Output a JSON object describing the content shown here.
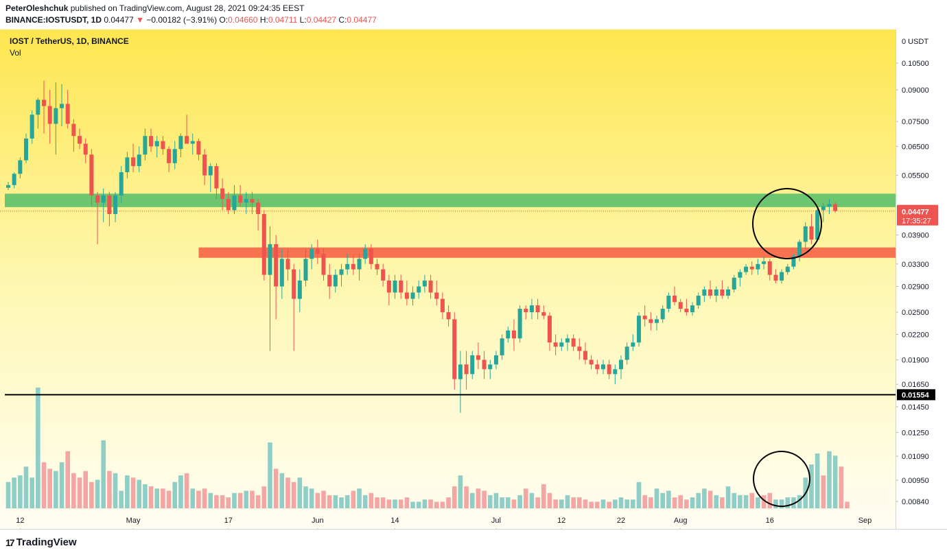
{
  "header": {
    "author": "PeterOleshchuk",
    "published_text": "published on TradingView.com, August 28, 2021 09:24:35 EEST",
    "symbol": "BINANCE:IOSTUSDT, 1D",
    "last": "0.04477",
    "change_arrow": "▼",
    "change": "−0.00182 (−3.91%)",
    "o_label": "O:",
    "o": "0.04660",
    "h_label": "H:",
    "h": "0.04711",
    "l_label": "L:",
    "l": "0.04427",
    "c_label": "C:",
    "c": "0.04477"
  },
  "pane": {
    "title": "IOST / TetherUS, 1D, BINANCE",
    "vol_label": "Vol"
  },
  "logo": {
    "text": "TradingView",
    "mark": "17"
  },
  "colors": {
    "up": "#26a69a",
    "down": "#ef5350",
    "vol_up": "#8fcdc7",
    "vol_down": "#f4a6a4",
    "green_zone": "#6cc56f",
    "red_zone": "#f7734f",
    "bg_top": "#fde64f",
    "bg_bottom": "#fffdf1"
  },
  "chart_data": {
    "type": "candlestick",
    "scale": "log",
    "price_axis_currency": "0 USDT",
    "y_ticks": [
      0.105,
      0.09,
      0.075,
      0.065,
      0.055,
      0.039,
      0.033,
      0.029,
      0.025,
      0.022,
      0.019,
      0.0165,
      0.0145,
      0.0125,
      0.0109,
      0.0095,
      0.0084
    ],
    "y_tick_labels": [
      "0.10500",
      "0.09000",
      "0.07500",
      "0.06500",
      "0.05500",
      "0.03900",
      "0.03300",
      "0.02900",
      "0.02500",
      "0.02200",
      "0.01900",
      "0.01650",
      "0.01450",
      "0.01250",
      "0.01090",
      "0.00950",
      "0.00840"
    ],
    "x_ticks": [
      {
        "label": "12",
        "date": "2021-04-12"
      },
      {
        "label": "May",
        "date": "2021-05-01"
      },
      {
        "label": "17",
        "date": "2021-05-17"
      },
      {
        "label": "Jun",
        "date": "2021-06-01"
      },
      {
        "label": "14",
        "date": "2021-06-14"
      },
      {
        "label": "Jul",
        "date": "2021-07-01"
      },
      {
        "label": "12",
        "date": "2021-07-12"
      },
      {
        "label": "22",
        "date": "2021-07-22"
      },
      {
        "label": "Aug",
        "date": "2021-08-01"
      },
      {
        "label": "16",
        "date": "2021-08-16"
      },
      {
        "label": "Sep",
        "date": "2021-09-01"
      }
    ],
    "first_date": "2021-04-10",
    "candles": [
      [
        0.0512,
        0.053,
        0.0505,
        0.052
      ],
      [
        0.052,
        0.056,
        0.051,
        0.0555
      ],
      [
        0.0555,
        0.061,
        0.054,
        0.06
      ],
      [
        0.06,
        0.07,
        0.059,
        0.068
      ],
      [
        0.068,
        0.08,
        0.066,
        0.078
      ],
      [
        0.078,
        0.086,
        0.072,
        0.085
      ],
      [
        0.085,
        0.095,
        0.07,
        0.082
      ],
      [
        0.082,
        0.09,
        0.066,
        0.074
      ],
      [
        0.074,
        0.094,
        0.062,
        0.081
      ],
      [
        0.081,
        0.093,
        0.073,
        0.083
      ],
      [
        0.083,
        0.09,
        0.072,
        0.074
      ],
      [
        0.074,
        0.076,
        0.063,
        0.069
      ],
      [
        0.069,
        0.072,
        0.064,
        0.066
      ],
      [
        0.066,
        0.068,
        0.059,
        0.062
      ],
      [
        0.062,
        0.064,
        0.046,
        0.049
      ],
      [
        0.049,
        0.05,
        0.037,
        0.047
      ],
      [
        0.047,
        0.051,
        0.042,
        0.049
      ],
      [
        0.049,
        0.05,
        0.041,
        0.044
      ],
      [
        0.044,
        0.05,
        0.042,
        0.049
      ],
      [
        0.049,
        0.058,
        0.047,
        0.056
      ],
      [
        0.056,
        0.063,
        0.054,
        0.061
      ],
      [
        0.061,
        0.066,
        0.056,
        0.058
      ],
      [
        0.058,
        0.065,
        0.056,
        0.062
      ],
      [
        0.062,
        0.072,
        0.06,
        0.069
      ],
      [
        0.069,
        0.072,
        0.063,
        0.065
      ],
      [
        0.065,
        0.069,
        0.061,
        0.067
      ],
      [
        0.067,
        0.069,
        0.062,
        0.064
      ],
      [
        0.064,
        0.065,
        0.056,
        0.059
      ],
      [
        0.059,
        0.067,
        0.057,
        0.064
      ],
      [
        0.064,
        0.07,
        0.061,
        0.069
      ],
      [
        0.069,
        0.078,
        0.066,
        0.066
      ],
      [
        0.066,
        0.07,
        0.062,
        0.067
      ],
      [
        0.067,
        0.068,
        0.06,
        0.062
      ],
      [
        0.062,
        0.064,
        0.052,
        0.055
      ],
      [
        0.055,
        0.059,
        0.05,
        0.058
      ],
      [
        0.058,
        0.059,
        0.048,
        0.051
      ],
      [
        0.051,
        0.054,
        0.045,
        0.048
      ],
      [
        0.048,
        0.05,
        0.044,
        0.045
      ],
      [
        0.045,
        0.052,
        0.044,
        0.049
      ],
      [
        0.049,
        0.052,
        0.046,
        0.047
      ],
      [
        0.047,
        0.05,
        0.044,
        0.048
      ],
      [
        0.048,
        0.05,
        0.044,
        0.047
      ],
      [
        0.047,
        0.048,
        0.04,
        0.044
      ],
      [
        0.044,
        0.045,
        0.03,
        0.031
      ],
      [
        0.031,
        0.041,
        0.02,
        0.037
      ],
      [
        0.037,
        0.039,
        0.024,
        0.029
      ],
      [
        0.029,
        0.036,
        0.027,
        0.034
      ],
      [
        0.034,
        0.036,
        0.03,
        0.032
      ],
      [
        0.032,
        0.033,
        0.02,
        0.027
      ],
      [
        0.027,
        0.032,
        0.025,
        0.03
      ],
      [
        0.03,
        0.036,
        0.029,
        0.034
      ],
      [
        0.034,
        0.037,
        0.032,
        0.036
      ],
      [
        0.036,
        0.038,
        0.033,
        0.035
      ],
      [
        0.035,
        0.036,
        0.03,
        0.031
      ],
      [
        0.031,
        0.033,
        0.027,
        0.029
      ],
      [
        0.029,
        0.032,
        0.028,
        0.031
      ],
      [
        0.031,
        0.033,
        0.029,
        0.032
      ],
      [
        0.032,
        0.035,
        0.031,
        0.033
      ],
      [
        0.033,
        0.035,
        0.031,
        0.032
      ],
      [
        0.032,
        0.035,
        0.03,
        0.034
      ],
      [
        0.034,
        0.037,
        0.033,
        0.036
      ],
      [
        0.036,
        0.037,
        0.032,
        0.033
      ],
      [
        0.033,
        0.034,
        0.031,
        0.032
      ],
      [
        0.032,
        0.033,
        0.029,
        0.03
      ],
      [
        0.03,
        0.031,
        0.026,
        0.028
      ],
      [
        0.028,
        0.031,
        0.027,
        0.03
      ],
      [
        0.03,
        0.031,
        0.027,
        0.028
      ],
      [
        0.028,
        0.03,
        0.026,
        0.027
      ],
      [
        0.027,
        0.029,
        0.026,
        0.028
      ],
      [
        0.028,
        0.03,
        0.027,
        0.029
      ],
      [
        0.029,
        0.031,
        0.028,
        0.03
      ],
      [
        0.03,
        0.031,
        0.027,
        0.028
      ],
      [
        0.028,
        0.03,
        0.026,
        0.027
      ],
      [
        0.027,
        0.028,
        0.024,
        0.025
      ],
      [
        0.025,
        0.026,
        0.023,
        0.024
      ],
      [
        0.024,
        0.025,
        0.016,
        0.017
      ],
      [
        0.017,
        0.02,
        0.014,
        0.0185
      ],
      [
        0.0185,
        0.02,
        0.016,
        0.0175
      ],
      [
        0.0175,
        0.02,
        0.017,
        0.0195
      ],
      [
        0.0195,
        0.021,
        0.018,
        0.019
      ],
      [
        0.019,
        0.02,
        0.017,
        0.018
      ],
      [
        0.018,
        0.019,
        0.017,
        0.0185
      ],
      [
        0.0185,
        0.02,
        0.018,
        0.0195
      ],
      [
        0.0195,
        0.022,
        0.019,
        0.0215
      ],
      [
        0.0215,
        0.023,
        0.021,
        0.0225
      ],
      [
        0.0225,
        0.024,
        0.02,
        0.0215
      ],
      [
        0.0215,
        0.026,
        0.021,
        0.0255
      ],
      [
        0.0255,
        0.026,
        0.024,
        0.025
      ],
      [
        0.025,
        0.027,
        0.024,
        0.026
      ],
      [
        0.026,
        0.027,
        0.024,
        0.025
      ],
      [
        0.025,
        0.026,
        0.024,
        0.0245
      ],
      [
        0.0245,
        0.025,
        0.02,
        0.021
      ],
      [
        0.021,
        0.022,
        0.0195,
        0.0205
      ],
      [
        0.0205,
        0.0215,
        0.02,
        0.021
      ],
      [
        0.021,
        0.022,
        0.02,
        0.0215
      ],
      [
        0.0215,
        0.022,
        0.02,
        0.0205
      ],
      [
        0.0205,
        0.0215,
        0.019,
        0.02
      ],
      [
        0.02,
        0.021,
        0.0185,
        0.019
      ],
      [
        0.019,
        0.0195,
        0.018,
        0.0185
      ],
      [
        0.0185,
        0.019,
        0.0175,
        0.018
      ],
      [
        0.018,
        0.019,
        0.0175,
        0.0185
      ],
      [
        0.0185,
        0.019,
        0.017,
        0.0175
      ],
      [
        0.0175,
        0.0185,
        0.0165,
        0.018
      ],
      [
        0.018,
        0.0195,
        0.017,
        0.019
      ],
      [
        0.019,
        0.021,
        0.0185,
        0.0205
      ],
      [
        0.0205,
        0.022,
        0.02,
        0.021
      ],
      [
        0.021,
        0.025,
        0.0205,
        0.0245
      ],
      [
        0.0245,
        0.026,
        0.023,
        0.024
      ],
      [
        0.024,
        0.025,
        0.0225,
        0.0235
      ],
      [
        0.0235,
        0.0245,
        0.0225,
        0.024
      ],
      [
        0.024,
        0.026,
        0.0235,
        0.0255
      ],
      [
        0.0255,
        0.028,
        0.025,
        0.0275
      ],
      [
        0.0275,
        0.029,
        0.026,
        0.0265
      ],
      [
        0.0265,
        0.027,
        0.025,
        0.0255
      ],
      [
        0.0255,
        0.027,
        0.0245,
        0.025
      ],
      [
        0.025,
        0.0265,
        0.0245,
        0.026
      ],
      [
        0.026,
        0.028,
        0.0255,
        0.0275
      ],
      [
        0.0275,
        0.029,
        0.0265,
        0.0285
      ],
      [
        0.0285,
        0.03,
        0.027,
        0.0275
      ],
      [
        0.0275,
        0.029,
        0.0265,
        0.0285
      ],
      [
        0.0285,
        0.03,
        0.027,
        0.0275
      ],
      [
        0.0275,
        0.029,
        0.027,
        0.0285
      ],
      [
        0.0285,
        0.031,
        0.028,
        0.0305
      ],
      [
        0.0305,
        0.032,
        0.029,
        0.0315
      ],
      [
        0.0315,
        0.033,
        0.031,
        0.0325
      ],
      [
        0.0325,
        0.0335,
        0.031,
        0.032
      ],
      [
        0.032,
        0.034,
        0.031,
        0.033
      ],
      [
        0.033,
        0.0345,
        0.032,
        0.0335
      ],
      [
        0.0335,
        0.034,
        0.03,
        0.031
      ],
      [
        0.031,
        0.032,
        0.0295,
        0.03
      ],
      [
        0.03,
        0.032,
        0.0295,
        0.0315
      ],
      [
        0.0315,
        0.033,
        0.031,
        0.0325
      ],
      [
        0.0325,
        0.035,
        0.032,
        0.0345
      ],
      [
        0.0345,
        0.038,
        0.0335,
        0.0375
      ],
      [
        0.0375,
        0.042,
        0.036,
        0.041
      ],
      [
        0.041,
        0.044,
        0.037,
        0.038
      ],
      [
        0.038,
        0.046,
        0.0375,
        0.045
      ],
      [
        0.045,
        0.047,
        0.042,
        0.046
      ],
      [
        0.046,
        0.048,
        0.044,
        0.0466
      ],
      [
        0.0466,
        0.0471,
        0.0443,
        0.0448
      ]
    ],
    "volume": [
      12,
      14,
      15,
      19,
      14,
      55,
      21,
      18,
      17,
      21,
      26,
      16,
      14,
      17,
      12,
      13,
      31,
      17,
      16,
      8,
      15,
      14,
      13,
      11,
      10,
      9,
      9,
      8,
      12,
      15,
      16,
      9,
      8,
      9,
      7,
      6,
      6,
      5,
      7,
      7,
      8,
      8,
      6,
      10,
      30,
      18,
      16,
      14,
      12,
      14,
      10,
      9,
      7,
      8,
      6,
      6,
      5,
      6,
      8,
      9,
      6,
      7,
      5,
      5,
      4,
      4,
      4,
      5,
      3,
      3,
      4,
      4,
      3,
      3,
      5,
      10,
      15,
      10,
      7,
      9,
      8,
      6,
      7,
      5,
      5,
      4,
      6,
      9,
      7,
      5,
      11,
      7,
      4,
      4,
      6,
      5,
      5,
      4,
      3,
      3,
      4,
      3,
      4,
      5,
      4,
      4,
      12,
      6,
      5,
      9,
      7,
      8,
      5,
      6,
      4,
      5,
      7,
      9,
      8,
      6,
      5,
      10,
      7,
      6,
      6,
      7,
      5,
      6,
      7,
      4,
      4,
      5,
      5,
      6,
      14,
      20,
      25,
      15,
      26,
      24,
      19,
      3
    ],
    "vol_up": [
      1,
      1,
      1,
      1,
      1,
      1,
      0,
      0,
      1,
      1,
      0,
      0,
      0,
      0,
      0,
      1,
      1,
      0,
      1,
      1,
      1,
      0,
      1,
      1,
      0,
      1,
      0,
      0,
      1,
      1,
      0,
      1,
      0,
      0,
      1,
      0,
      0,
      0,
      1,
      0,
      1,
      0,
      0,
      0,
      1,
      0,
      1,
      0,
      0,
      1,
      1,
      1,
      0,
      0,
      0,
      1,
      1,
      1,
      0,
      1,
      1,
      0,
      0,
      0,
      0,
      1,
      0,
      0,
      1,
      1,
      1,
      0,
      0,
      0,
      0,
      0,
      1,
      0,
      1,
      0,
      0,
      1,
      1,
      1,
      1,
      0,
      1,
      0,
      1,
      0,
      0,
      0,
      0,
      1,
      1,
      0,
      0,
      0,
      0,
      0,
      1,
      0,
      1,
      1,
      1,
      1,
      1,
      0,
      0,
      1,
      1,
      1,
      0,
      0,
      0,
      1,
      1,
      1,
      0,
      1,
      0,
      1,
      1,
      1,
      1,
      0,
      1,
      0,
      0,
      1,
      1,
      1,
      1,
      1,
      1,
      1,
      1,
      0,
      1,
      1,
      0,
      0
    ],
    "zones": [
      {
        "type": "resistance_green",
        "top": 0.0495,
        "bottom": 0.0458,
        "from_index": 0
      },
      {
        "type": "support_red",
        "top": 0.0363,
        "bottom": 0.0342,
        "from_index": 44
      }
    ],
    "horizontal_line": {
      "value": 0.01554,
      "label": "0.01554"
    },
    "last_price": {
      "value": 0.04477,
      "label": "0.04477",
      "countdown": "17:35:27"
    },
    "circles": [
      {
        "around": "price",
        "from_index": 138,
        "to_index": 149
      },
      {
        "around": "volume",
        "from_index": 138,
        "to_index": 148
      }
    ]
  }
}
